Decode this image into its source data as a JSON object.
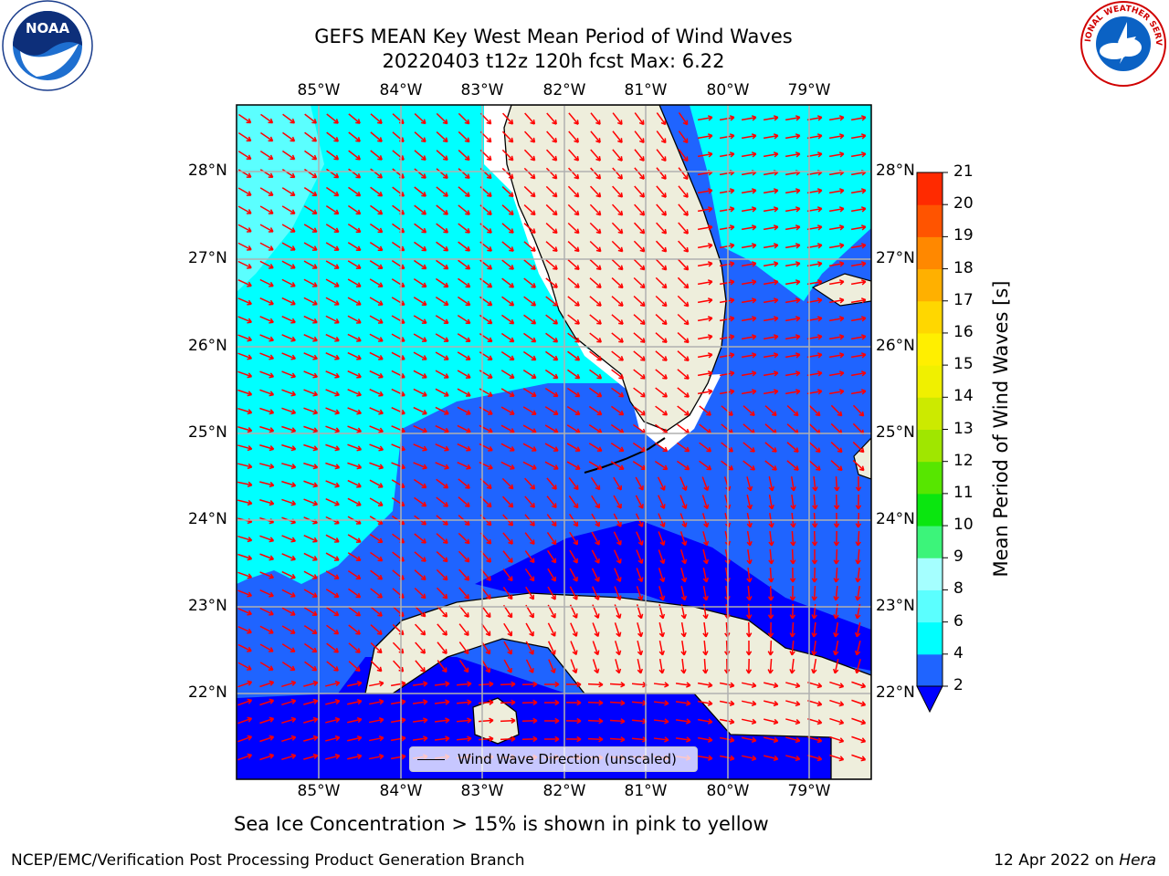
{
  "title": {
    "line1": "GEFS MEAN Key West Mean Period of Wind Waves",
    "line2": "20220403 t12z 120h fcst   Max: 6.22"
  },
  "map": {
    "lon_labels": [
      "85°W",
      "84°W",
      "83°W",
      "82°W",
      "81°W",
      "80°W",
      "79°W"
    ],
    "lat_labels": [
      "28°N",
      "27°N",
      "26°N",
      "25°N",
      "24°N",
      "23°N",
      "22°N"
    ],
    "lon_range": [
      -86.0,
      -78.3
    ],
    "lat_range": [
      21.0,
      28.8
    ],
    "land_color": "#eeeedc",
    "arrow_color": "#ff0000",
    "legend_label": "Wind Wave Direction (unscaled)"
  },
  "colorbar": {
    "title": "Mean Period of Wind Waves [s]",
    "ticks": [
      "2",
      "4",
      "6",
      "8",
      "9",
      "10",
      "11",
      "12",
      "13",
      "14",
      "15",
      "16",
      "17",
      "18",
      "19",
      "20",
      "21"
    ],
    "colors": [
      "#1f64ff",
      "#00ffff",
      "#5bffff",
      "#a5ffff",
      "#3cf47a",
      "#0ae60f",
      "#57e600",
      "#a0e600",
      "#ccea00",
      "#f0f000",
      "#ffef00",
      "#ffd700",
      "#ffb000",
      "#ff8800",
      "#ff5400",
      "#ff2a00"
    ],
    "under_color": "#0000ff"
  },
  "note": "Sea Ice Concentration > 15% is shown in pink to yellow",
  "footer": {
    "left": "NCEP/EMC/Verification Post Processing Product Generation Branch",
    "right_date": "12 Apr 2022 on",
    "right_host": "Hera"
  },
  "logos": {
    "noaa": "NOAA",
    "nws": "NATIONAL WEATHER SERVICE"
  }
}
